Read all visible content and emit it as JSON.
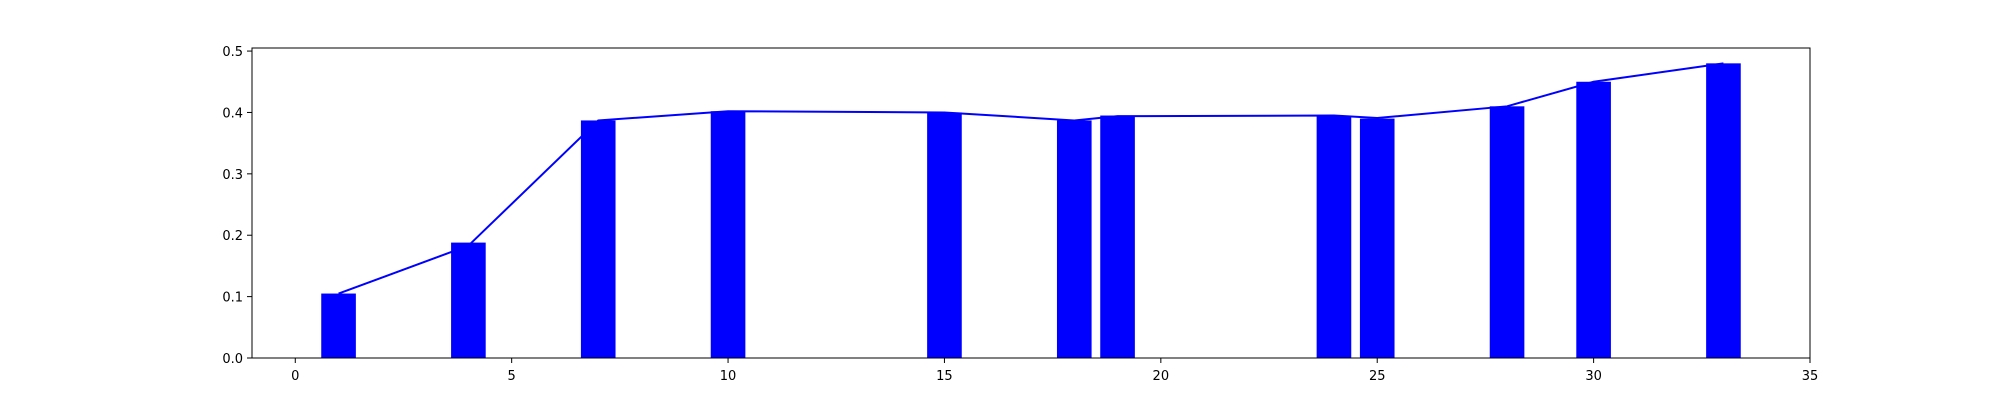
{
  "chart_data": {
    "type": "bar",
    "title": "",
    "xlabel": "",
    "ylabel": "",
    "xlim": [
      -1,
      35
    ],
    "ylim": [
      0,
      0.505
    ],
    "grid": false,
    "bar_color": "#0000ff",
    "line_color": "#0000ff",
    "bar_width": 0.8,
    "x_ticks": [
      0,
      5,
      10,
      15,
      20,
      25,
      30,
      35
    ],
    "y_ticks": [
      0.0,
      0.1,
      0.2,
      0.3,
      0.4,
      0.5
    ],
    "x_tick_labels": [
      "0",
      "5",
      "10",
      "15",
      "20",
      "25",
      "30",
      "35"
    ],
    "y_tick_labels": [
      "0.0",
      "0.1",
      "0.2",
      "0.3",
      "0.4",
      "0.5"
    ],
    "x": [
      1,
      4,
      7,
      10,
      15,
      18,
      19,
      24,
      25,
      28,
      30,
      33
    ],
    "values": [
      0.105,
      0.188,
      0.387,
      0.402,
      0.4,
      0.387,
      0.395,
      0.395,
      0.39,
      0.41,
      0.45,
      0.48
    ],
    "line_values": [
      0.105,
      0.183,
      0.387,
      0.402,
      0.4,
      0.387,
      0.394,
      0.395,
      0.391,
      0.41,
      0.45,
      0.48
    ]
  }
}
